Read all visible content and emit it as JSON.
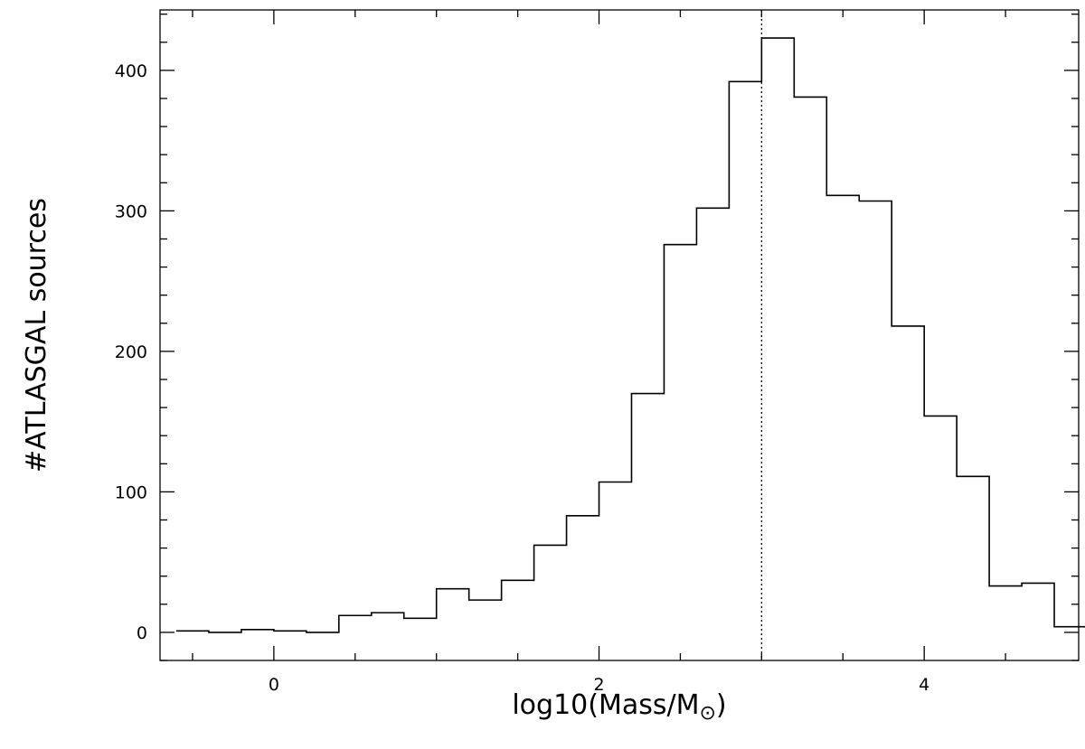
{
  "chart_data": {
    "type": "histogram",
    "xlabel_text": "log10(Mass/M",
    "xlabel_symbol": "⊙",
    "xlabel_close": ")",
    "ylabel": "#ATLASGAL sources",
    "xlim": [
      -0.7,
      4.95
    ],
    "ylim": [
      -20,
      443
    ],
    "x_ticks": [
      0,
      2,
      4
    ],
    "x_tick_labels": [
      "0",
      "2",
      "4"
    ],
    "y_ticks": [
      0,
      100,
      200,
      300,
      400
    ],
    "y_tick_labels": [
      "0",
      "100",
      "200",
      "300",
      "400"
    ],
    "x_minor_step": 0.5,
    "y_minor_step": 20,
    "bin_width": 0.2,
    "bins": [
      {
        "x_left": -0.6,
        "count": 1
      },
      {
        "x_left": -0.4,
        "count": 0
      },
      {
        "x_left": -0.2,
        "count": 2
      },
      {
        "x_left": 0.0,
        "count": 1
      },
      {
        "x_left": 0.2,
        "count": 0
      },
      {
        "x_left": 0.4,
        "count": 12
      },
      {
        "x_left": 0.6,
        "count": 14
      },
      {
        "x_left": 0.8,
        "count": 10
      },
      {
        "x_left": 1.0,
        "count": 31
      },
      {
        "x_left": 1.2,
        "count": 23
      },
      {
        "x_left": 1.4,
        "count": 37
      },
      {
        "x_left": 1.6,
        "count": 62
      },
      {
        "x_left": 1.8,
        "count": 83
      },
      {
        "x_left": 2.0,
        "count": 107
      },
      {
        "x_left": 2.2,
        "count": 170
      },
      {
        "x_left": 2.4,
        "count": 276
      },
      {
        "x_left": 2.6,
        "count": 302
      },
      {
        "x_left": 2.8,
        "count": 392
      },
      {
        "x_left": 3.0,
        "count": 423
      },
      {
        "x_left": 3.2,
        "count": 381
      },
      {
        "x_left": 3.4,
        "count": 311
      },
      {
        "x_left": 3.6,
        "count": 307
      },
      {
        "x_left": 3.8,
        "count": 218
      },
      {
        "x_left": 4.0,
        "count": 154
      },
      {
        "x_left": 4.2,
        "count": 111
      },
      {
        "x_left": 4.4,
        "count": 33
      },
      {
        "x_left": 4.6,
        "count": 35
      },
      {
        "x_left": 4.8,
        "count": 4
      }
    ],
    "vline_x": 3.0,
    "vline_style": "dotted",
    "grid": false,
    "line_color": "#000000"
  }
}
